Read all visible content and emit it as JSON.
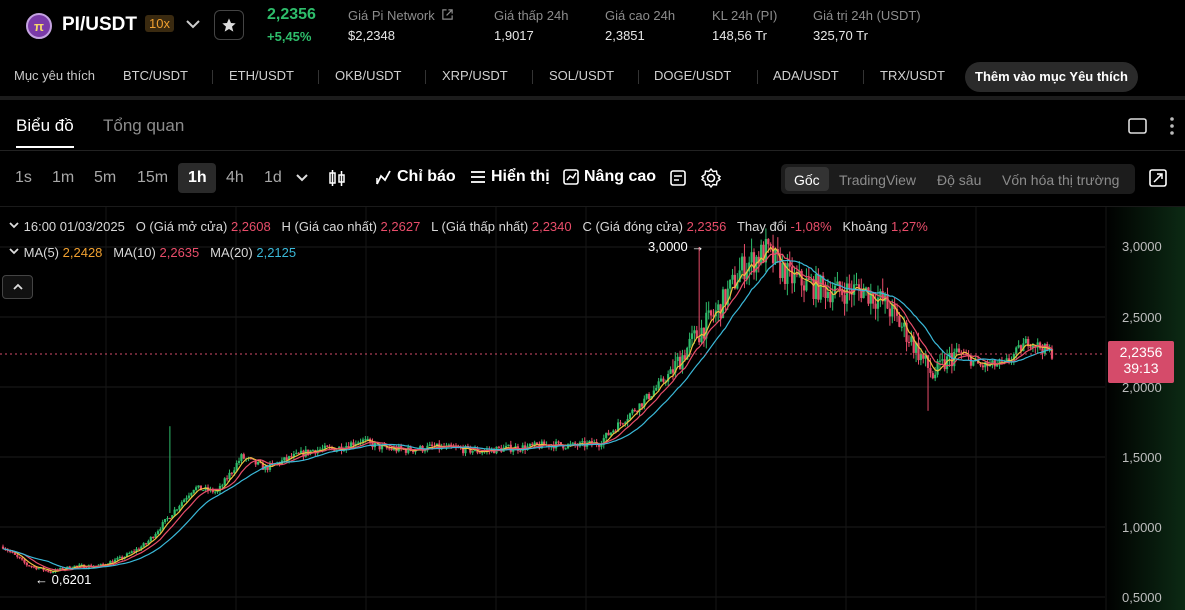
{
  "header": {
    "logo_glyph": "π",
    "pair": "PI/USDT",
    "leverage": "10x",
    "last_price": "2,2356",
    "change_pct": "+5,45%",
    "stats": [
      {
        "label": "Giá Pi Network",
        "value": "$2,2348"
      },
      {
        "label": "Giá thấp 24h",
        "value": "1,9017"
      },
      {
        "label": "Giá cao 24h",
        "value": "2,3851"
      },
      {
        "label": "KL 24h (PI)",
        "value": "148,56 Tr"
      },
      {
        "label": "Giá trị 24h (USDT)",
        "value": "325,70 Tr"
      }
    ]
  },
  "favorites": {
    "label": "Mục yêu thích",
    "items": [
      "BTC/USDT",
      "ETH/USDT",
      "OKB/USDT",
      "XRP/USDT",
      "SOL/USDT",
      "DOGE/USDT",
      "ADA/USDT",
      "TRX/USDT"
    ],
    "add_label": "Thêm vào mục Yêu thích"
  },
  "tabs": [
    "Biểu đồ",
    "Tổng quan"
  ],
  "toolbar": {
    "timeframes": [
      "1s",
      "1m",
      "5m",
      "15m",
      "1h",
      "4h",
      "1d"
    ],
    "active_timeframe": "1h",
    "indicators_label": "Chỉ báo",
    "display_label": "Hiển thị",
    "advanced_label": "Nâng cao",
    "views": [
      "Gốc",
      "TradingView",
      "Độ sâu",
      "Vốn hóa thị trường"
    ],
    "active_view": "Gốc"
  },
  "ohlc": {
    "time": "16:00 01/03/2025",
    "o_label": "O (Giá mở cửa)",
    "o": "2,2608",
    "h_label": "H (Giá cao nhất)",
    "h": "2,2627",
    "l_label": "L (Giá thấp nhất)",
    "l": "2,2340",
    "c_label": "C (Giá đóng cửa)",
    "c": "2,2356",
    "chg_label": "Thay đổi",
    "chg": "-1,08%",
    "amp_label": "Khoảng",
    "amp": "1,27%"
  },
  "ma": {
    "ma5_label": "MA(5)",
    "ma5": "2,2428",
    "ma10_label": "MA(10)",
    "ma10": "2,2635",
    "ma20_label": "MA(20)",
    "ma20": "2,2125"
  },
  "chart": {
    "current_price": "2,2356",
    "countdown": "39:13",
    "high_marker": "3,0000 →",
    "low_marker": "← 0,6201",
    "y_ticks": [
      "3,0000",
      "2,5000",
      "2,0000",
      "1,5000",
      "1,0000",
      "0,5000"
    ],
    "colors": {
      "up": "#2ebd6b",
      "down": "#e84d6a",
      "ma5": "#f0c040",
      "ma10": "#e84d6a",
      "ma20": "#3ab8d8"
    }
  },
  "chart_data": {
    "type": "candlestick",
    "x_unit": "hour index",
    "y_ticks": [
      0.5,
      1.0,
      1.5,
      2.0,
      2.5,
      3.0
    ],
    "ylim": [
      0.44,
      3.17
    ],
    "grid": true,
    "anchor_prices": [
      [
        0,
        0.86
      ],
      [
        10,
        0.73
      ],
      [
        20,
        0.68
      ],
      [
        30,
        0.72
      ],
      [
        40,
        0.72
      ],
      [
        50,
        0.78
      ],
      [
        60,
        0.88
      ],
      [
        70,
        1.08
      ],
      [
        80,
        1.28
      ],
      [
        90,
        1.25
      ],
      [
        100,
        1.5
      ],
      [
        110,
        1.42
      ],
      [
        120,
        1.49
      ],
      [
        130,
        1.55
      ],
      [
        140,
        1.56
      ],
      [
        150,
        1.62
      ],
      [
        160,
        1.56
      ],
      [
        170,
        1.55
      ],
      [
        180,
        1.57
      ],
      [
        190,
        1.56
      ],
      [
        200,
        1.54
      ],
      [
        210,
        1.56
      ],
      [
        220,
        1.57
      ],
      [
        230,
        1.59
      ],
      [
        240,
        1.58
      ],
      [
        250,
        1.6
      ],
      [
        260,
        1.76
      ],
      [
        270,
        1.92
      ],
      [
        280,
        2.1
      ],
      [
        290,
        2.35
      ],
      [
        300,
        2.55
      ],
      [
        310,
        2.85
      ],
      [
        320,
        2.97
      ],
      [
        330,
        2.78
      ],
      [
        340,
        2.72
      ],
      [
        350,
        2.68
      ],
      [
        360,
        2.7
      ],
      [
        370,
        2.6
      ],
      [
        380,
        2.36
      ],
      [
        390,
        2.08
      ],
      [
        400,
        2.25
      ],
      [
        410,
        2.15
      ],
      [
        420,
        2.16
      ],
      [
        430,
        2.33
      ],
      [
        440,
        2.24
      ]
    ],
    "high_marker": 3.0,
    "low_marker": 0.6201,
    "last_close": 2.2356
  }
}
